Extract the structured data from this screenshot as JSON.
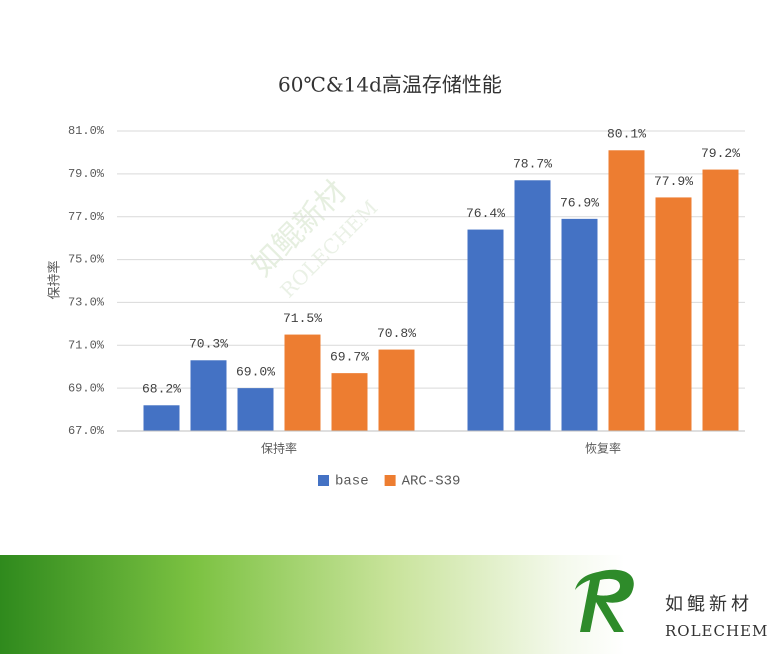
{
  "chart_data": {
    "type": "grouped-bar",
    "title": "60℃&14d高温存储性能",
    "y_label": "保持率",
    "categories": [
      "保持率",
      "恢复率"
    ],
    "series": [
      {
        "name": "base",
        "color": "#4472c4",
        "values": [
          [
            68.2,
            70.3,
            69.0
          ],
          [
            76.4,
            78.7,
            76.9
          ]
        ],
        "value_labels": [
          [
            "68.2%",
            "70.3%",
            "69.0%"
          ],
          [
            "76.4%",
            "78.7%",
            "76.9%"
          ]
        ]
      },
      {
        "name": "ARC-S39",
        "color": "#ed7d31",
        "values": [
          [
            71.5,
            69.7,
            70.8
          ],
          [
            80.1,
            77.9,
            79.2
          ]
        ],
        "value_labels": [
          [
            "71.5%",
            "69.7%",
            "70.8%"
          ],
          [
            "80.1%",
            "77.9%",
            "79.2%"
          ]
        ]
      }
    ],
    "ylim": [
      67,
      81
    ],
    "yticks": [
      {
        "value": 67,
        "label": "67.0%"
      },
      {
        "value": 69,
        "label": "69.0%"
      },
      {
        "value": 71,
        "label": "71.0%"
      },
      {
        "value": 73,
        "label": "73.0%"
      },
      {
        "value": 75,
        "label": "75.0%"
      },
      {
        "value": 77,
        "label": "77.0%"
      },
      {
        "value": 79,
        "label": "79.0%"
      },
      {
        "value": 81,
        "label": "81.0%"
      }
    ],
    "grid": true,
    "legend": "bottom"
  },
  "footer": {
    "brand_cn": "如鲲新材",
    "brand_en": "ROLECHEM"
  }
}
